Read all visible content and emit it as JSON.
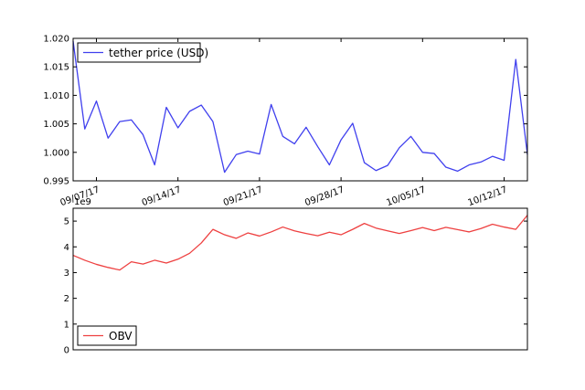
{
  "chart_data": [
    {
      "type": "line",
      "title": "",
      "xlabel": "",
      "ylabel": "",
      "x_tick_labels": [
        "09/07/17",
        "09/14/17",
        "09/21/17",
        "09/28/17",
        "10/05/17",
        "10/12/17"
      ],
      "x_tick_dates": [
        "2017-09-07",
        "2017-09-14",
        "2017-09-21",
        "2017-09-28",
        "2017-10-05",
        "2017-10-12"
      ],
      "x_range": [
        "2017-09-05",
        "2017-10-14"
      ],
      "ylim": [
        0.995,
        1.02
      ],
      "y_ticks": [
        "0.995",
        "1.000",
        "1.005",
        "1.010",
        "1.015",
        "1.020"
      ],
      "grid": false,
      "legend_position": "top-left",
      "series": [
        {
          "name": "tether price (USD)",
          "color": "#4040ee",
          "x": [
            "2017-09-05",
            "2017-09-06",
            "2017-09-07",
            "2017-09-08",
            "2017-09-09",
            "2017-09-10",
            "2017-09-11",
            "2017-09-12",
            "2017-09-13",
            "2017-09-14",
            "2017-09-15",
            "2017-09-16",
            "2017-09-17",
            "2017-09-18",
            "2017-09-19",
            "2017-09-20",
            "2017-09-21",
            "2017-09-22",
            "2017-09-23",
            "2017-09-24",
            "2017-09-25",
            "2017-09-26",
            "2017-09-27",
            "2017-09-28",
            "2017-09-29",
            "2017-09-30",
            "2017-10-01",
            "2017-10-02",
            "2017-10-03",
            "2017-10-04",
            "2017-10-05",
            "2017-10-06",
            "2017-10-07",
            "2017-10-08",
            "2017-10-09",
            "2017-10-10",
            "2017-10-11",
            "2017-10-12",
            "2017-10-13",
            "2017-10-14"
          ],
          "values": [
            1.0195,
            1.0041,
            1.009,
            1.0025,
            1.0054,
            1.0057,
            1.0031,
            0.9978,
            1.0079,
            1.0043,
            1.0072,
            1.0083,
            1.0054,
            0.9965,
            0.9996,
            1.0002,
            0.9997,
            1.0084,
            1.0028,
            1.0015,
            1.0044,
            1.001,
            0.9978,
            1.0022,
            1.0051,
            0.9982,
            0.9968,
            0.9977,
            1.0008,
            1.0028,
            1.0,
            0.9998,
            0.9974,
            0.9967,
            0.9978,
            0.9983,
            0.9993,
            0.9986,
            1.0163,
            0.9996
          ]
        }
      ]
    },
    {
      "type": "line",
      "title": "",
      "xlabel": "",
      "ylabel": "",
      "y_offset_label": "1e9",
      "x_range": [
        "2017-09-05",
        "2017-10-14"
      ],
      "ylim": [
        0,
        5.5
      ],
      "y_ticks": [
        "0",
        "1",
        "2",
        "3",
        "4",
        "5"
      ],
      "grid": false,
      "legend_position": "bottom-left",
      "series": [
        {
          "name": "OBV",
          "color": "#ee4040",
          "x": [
            "2017-09-05",
            "2017-09-06",
            "2017-09-07",
            "2017-09-08",
            "2017-09-09",
            "2017-09-10",
            "2017-09-11",
            "2017-09-12",
            "2017-09-13",
            "2017-09-14",
            "2017-09-15",
            "2017-09-16",
            "2017-09-17",
            "2017-09-18",
            "2017-09-19",
            "2017-09-20",
            "2017-09-21",
            "2017-09-22",
            "2017-09-23",
            "2017-09-24",
            "2017-09-25",
            "2017-09-26",
            "2017-09-27",
            "2017-09-28",
            "2017-09-29",
            "2017-09-30",
            "2017-10-01",
            "2017-10-02",
            "2017-10-03",
            "2017-10-04",
            "2017-10-05",
            "2017-10-06",
            "2017-10-07",
            "2017-10-08",
            "2017-10-09",
            "2017-10-10",
            "2017-10-11",
            "2017-10-12",
            "2017-10-13",
            "2017-10-14"
          ],
          "values": [
            3.67,
            3.48,
            3.32,
            3.2,
            3.1,
            3.42,
            3.33,
            3.48,
            3.37,
            3.52,
            3.75,
            4.15,
            4.68,
            4.47,
            4.33,
            4.54,
            4.42,
            4.58,
            4.77,
            4.62,
            4.52,
            4.43,
            4.57,
            4.47,
            4.68,
            4.91,
            4.73,
            4.62,
            4.52,
            4.63,
            4.75,
            4.63,
            4.76,
            4.67,
            4.58,
            4.71,
            4.88,
            4.77,
            4.68,
            5.23
          ]
        }
      ]
    }
  ]
}
